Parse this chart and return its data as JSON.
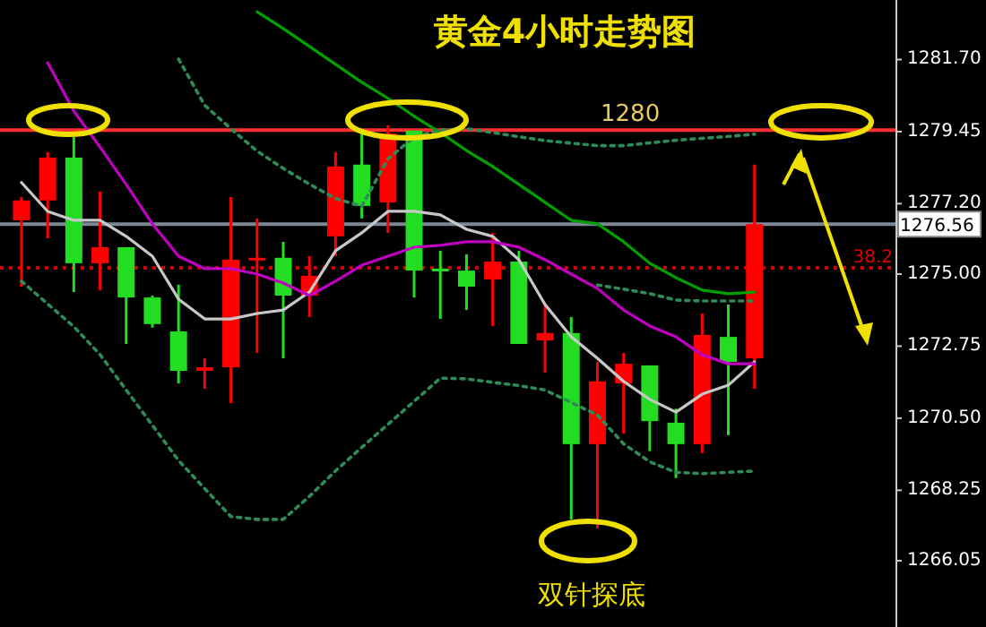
{
  "chart_data": {
    "type": "candlestick",
    "title": "黄金4小时走势图",
    "annotations": [
      "双针探底",
      {
        "text": "38.2",
        "y": 1275.2
      }
    ],
    "categories": [
      null,
      null,
      null,
      null,
      null,
      null,
      null,
      null,
      null,
      null,
      null,
      null,
      null,
      null,
      null,
      null,
      null,
      null,
      null,
      null,
      null,
      null,
      null,
      null,
      null,
      null,
      null,
      null,
      null
    ],
    "ohlc": [
      [
        1276.68,
        1277.41,
        1274.61,
        1277.3
      ],
      [
        1277.3,
        1278.81,
        1276.12,
        1278.64
      ],
      [
        1278.64,
        1279.28,
        1274.44,
        1275.34
      ],
      [
        1275.34,
        1277.58,
        1274.5,
        1275.84
      ],
      [
        1275.84,
        1275.84,
        1272.82,
        1274.27
      ],
      [
        1274.27,
        1274.33,
        1273.33,
        1273.44
      ],
      [
        1273.21,
        1274.67,
        1271.59,
        1271.98
      ],
      [
        1271.98,
        1272.37,
        1271.42,
        1272.09
      ],
      [
        1272.09,
        1277.41,
        1270.97,
        1275.45
      ],
      [
        1275.45,
        1276.74,
        1272.54,
        1275.51
      ],
      [
        1275.51,
        1276.01,
        1272.37,
        1274.33
      ],
      [
        1274.33,
        1275.56,
        1273.66,
        1274.95
      ],
      [
        1276.18,
        1278.81,
        1275.56,
        1278.36
      ],
      [
        1278.42,
        1279.39,
        1276.74,
        1277.13
      ],
      [
        1277.24,
        1279.65,
        1276.29,
        1279.39
      ],
      [
        1279.48,
        1279.48,
        1274.27,
        1275.11
      ],
      [
        1275.17,
        1275.73,
        1273.6,
        1275.11
      ],
      [
        1275.11,
        1275.62,
        1273.88,
        1274.61
      ],
      [
        1274.83,
        1276.29,
        1273.38,
        1275.39
      ],
      [
        1275.39,
        1275.73,
        1272.82,
        1272.82
      ],
      [
        1272.93,
        1274.05,
        1271.93,
        1273.16
      ],
      [
        1273.16,
        1273.66,
        1267.34,
        1269.69
      ],
      [
        1269.69,
        1272.26,
        1267.06,
        1271.65
      ],
      [
        1271.59,
        1272.54,
        1270.02,
        1272.2
      ],
      [
        1272.15,
        1272.15,
        1269.47,
        1270.41
      ],
      [
        1270.36,
        1270.8,
        1268.63,
        1269.69
      ],
      [
        1269.69,
        1273.77,
        1269.41,
        1273.1
      ],
      [
        1273.04,
        1274.05,
        1269.97,
        1272.26
      ],
      [
        1272.37,
        1278.42,
        1271.42,
        1276.56
      ]
    ],
    "colors": [
      "#ff0000",
      "#ff0000",
      "#22dd22",
      "#ff0000",
      "#22dd22",
      "#22dd22",
      "#22dd22",
      "#ff0000",
      "#ff0000",
      "#ff0000",
      "#22dd22",
      "#ff0000",
      "#ff0000",
      "#22dd22",
      "#ff0000",
      "#22dd22",
      "#22dd22",
      "#22dd22",
      "#ff0000",
      "#22dd22",
      "#ff0000",
      "#22dd22",
      "#ff0000",
      "#ff0000",
      "#22dd22",
      "#22dd22",
      "#ff0000",
      "#22dd22",
      "#ff0000"
    ],
    "series": [
      {
        "type": "line",
        "color": "#c8c8c8",
        "line_style": "solid",
        "values": [
          1277.86,
          1276.96,
          1276.68,
          1276.68,
          1276.18,
          1275.56,
          1274.22,
          1273.6,
          1273.6,
          1273.77,
          1273.88,
          1274.44,
          1275.73,
          1276.29,
          1276.96,
          1276.96,
          1276.85,
          1276.4,
          1276.18,
          1275.45,
          1274.05,
          1273.04,
          1272.37,
          1271.65,
          1271.09,
          1270.69,
          1271.25,
          1271.53,
          1272.26
        ]
      },
      {
        "type": "line",
        "color": "#c000c0",
        "line_style": "solid",
        "values": [
          null,
          1281.6,
          1280.09,
          1278.97,
          1277.8,
          1276.57,
          1275.56,
          1275.17,
          1275.17,
          1275.0,
          1274.72,
          1274.33,
          1274.78,
          1275.28,
          1275.56,
          1275.84,
          1275.9,
          1276.01,
          1276.01,
          1275.84,
          1275.45,
          1275.0,
          1274.55,
          1273.88,
          1273.38,
          1273.04,
          1272.48,
          1272.2,
          1272.2
        ]
      },
      {
        "type": "line",
        "color": "#00a000",
        "line_style": "solid",
        "values": [
          null,
          null,
          null,
          null,
          null,
          null,
          null,
          null,
          null,
          1283.19,
          1282.67,
          1282.11,
          1281.55,
          1280.99,
          1280.49,
          1279.93,
          1279.42,
          1278.86,
          1278.36,
          1277.8,
          1277.24,
          1276.68,
          1276.57,
          1276.01,
          1275.34,
          1274.89,
          1274.5,
          1274.39,
          1274.44
        ]
      },
      {
        "type": "line",
        "color": "#2e8b57",
        "line_style": "dotted",
        "values": [
          null,
          null,
          null,
          null,
          null,
          null,
          1281.72,
          1280.27,
          1279.54,
          1278.84,
          1278.3,
          1277.81,
          1277.36,
          1277.12,
          1278.6,
          1279.28,
          1279.5,
          1279.54,
          1279.42,
          1279.29,
          1279.17,
          1279.09,
          1279.01,
          1279.01,
          1279.1,
          1279.18,
          1279.24,
          1279.3,
          1279.37
        ]
      },
      {
        "type": "line",
        "color": "#2e8b57",
        "line_style": "dotted",
        "values": [
          1274.78,
          1274.07,
          1273.36,
          1272.49,
          1271.38,
          1270.28,
          1269.18,
          1268.3,
          1267.43,
          1267.34,
          1267.34,
          1268.06,
          1268.86,
          1269.59,
          1270.31,
          1271.03,
          1271.75,
          1271.73,
          1271.62,
          1271.52,
          1271.38,
          1270.99,
          1270.6,
          1269.7,
          1269.14,
          1268.81,
          1268.77,
          1268.81,
          1268.85
        ]
      },
      {
        "type": "line",
        "color": "#2e8b57",
        "line_style": "dotted",
        "values": [
          null,
          null,
          null,
          null,
          null,
          null,
          null,
          null,
          null,
          null,
          null,
          null,
          null,
          null,
          null,
          null,
          null,
          null,
          null,
          null,
          null,
          null,
          1274.66,
          1274.53,
          1274.39,
          1274.19,
          1274.16,
          1274.16,
          1274.16
        ]
      }
    ],
    "ref_lines": [
      {
        "axis": "y",
        "value": 1279.5,
        "label": "1280",
        "color": "#ff3030",
        "line_style": "solid"
      },
      {
        "axis": "y",
        "value": 1276.56,
        "label": "1276.56",
        "color": "#7c8896",
        "line_style": "solid"
      },
      {
        "axis": "y",
        "value": 1275.2,
        "color": "#d00000",
        "line_style": "dotted"
      }
    ],
    "ylim": [
      1263.98,
      1283.56
    ],
    "yticks": [
      {
        "value": 1281.7,
        "label": "1281.70"
      },
      1279.45,
      {
        "value": 1277.2,
        "label": "1277.20"
      },
      {
        "value": 1275,
        "label": "1275.00"
      },
      1272.75,
      {
        "value": 1270.5,
        "label": "1270.50"
      },
      1268.25,
      1266.05
    ],
    "tick_labels": "y"
  }
}
